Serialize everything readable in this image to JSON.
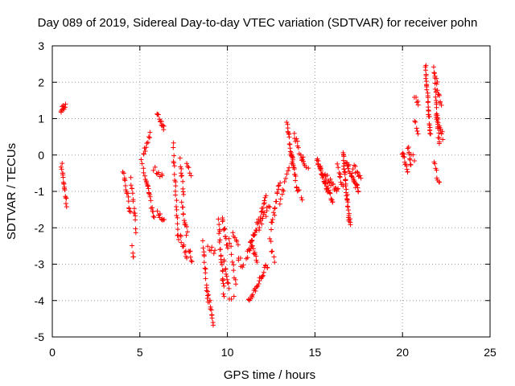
{
  "chart_data": {
    "type": "scatter",
    "title": "Day 089 of 2019, Sidereal Day-to-day VTEC variation (SDTVAR) for receiver pohn",
    "xlabel": "GPS time / hours",
    "ylabel": "SDTVAR / TECUs",
    "xlim": [
      0,
      25
    ],
    "ylim": [
      -5,
      3
    ],
    "xticks": [
      0,
      5,
      10,
      15,
      20,
      25
    ],
    "yticks": [
      -5,
      -4,
      -3,
      -2,
      -1,
      0,
      1,
      2,
      3
    ],
    "grid": true,
    "marker": "+",
    "marker_color": "#ff0000",
    "series": [
      {
        "name": "SDTVAR",
        "tracks": [
          {
            "x0": 0.5,
            "x1": 0.75,
            "y0": 1.2,
            "y1": 1.4,
            "n": 10
          },
          {
            "x0": 0.52,
            "x1": 0.82,
            "y0": -0.25,
            "y1": -1.35,
            "n": 18
          },
          {
            "x0": 4.05,
            "x1": 4.45,
            "y0": -0.45,
            "y1": -1.6,
            "n": 16
          },
          {
            "x0": 4.5,
            "x1": 4.8,
            "y0": -0.7,
            "y1": -2.05,
            "n": 14
          },
          {
            "x0": 4.55,
            "x1": 4.65,
            "y0": -2.55,
            "y1": -2.8,
            "n": 4
          },
          {
            "x0": 5.1,
            "x1": 5.5,
            "y0": -0.1,
            "y1": -1.0,
            "n": 10
          },
          {
            "x0": 5.2,
            "x1": 5.6,
            "y0": 0.0,
            "y1": 0.55,
            "n": 10
          },
          {
            "x0": 5.4,
            "x1": 5.8,
            "y0": -0.8,
            "y1": -1.75,
            "n": 14
          },
          {
            "x0": 5.8,
            "x1": 6.3,
            "y0": -0.4,
            "y1": -0.55,
            "n": 8
          },
          {
            "x0": 6.0,
            "x1": 6.4,
            "y0": 1.1,
            "y1": 0.75,
            "n": 12
          },
          {
            "x0": 6.0,
            "x1": 6.4,
            "y0": -1.55,
            "y1": -1.8,
            "n": 10
          },
          {
            "x0": 6.9,
            "x1": 7.2,
            "y0": 0.25,
            "y1": -2.4,
            "n": 22
          },
          {
            "x0": 7.3,
            "x1": 7.5,
            "y0": -0.15,
            "y1": -1.05,
            "n": 10
          },
          {
            "x0": 7.4,
            "x1": 7.7,
            "y0": -1.3,
            "y1": -2.2,
            "n": 12
          },
          {
            "x0": 7.3,
            "x1": 7.7,
            "y0": -2.25,
            "y1": -2.8,
            "n": 10
          },
          {
            "x0": 7.8,
            "x1": 8.0,
            "y0": -2.6,
            "y1": -2.9,
            "n": 6
          },
          {
            "x0": 7.7,
            "x1": 7.9,
            "y0": -0.2,
            "y1": -0.6,
            "n": 5
          },
          {
            "x0": 8.6,
            "x1": 8.9,
            "y0": -2.4,
            "y1": -4.05,
            "n": 16
          },
          {
            "x0": 8.9,
            "x1": 9.2,
            "y0": -3.8,
            "y1": -4.7,
            "n": 12
          },
          {
            "x0": 8.9,
            "x1": 9.3,
            "y0": -2.5,
            "y1": -2.7,
            "n": 6
          },
          {
            "x0": 9.5,
            "x1": 9.8,
            "y0": -1.8,
            "y1": -3.85,
            "n": 24
          },
          {
            "x0": 9.7,
            "x1": 10.0,
            "y0": -1.7,
            "y1": -2.6,
            "n": 12
          },
          {
            "x0": 9.8,
            "x1": 10.1,
            "y0": -2.9,
            "y1": -3.6,
            "n": 10
          },
          {
            "x0": 10.1,
            "x1": 10.4,
            "y0": -3.9,
            "y1": -3.9,
            "n": 3
          },
          {
            "x0": 10.1,
            "x1": 10.5,
            "y0": -2.3,
            "y1": -3.6,
            "n": 10
          },
          {
            "x0": 10.3,
            "x1": 10.6,
            "y0": -2.2,
            "y1": -2.5,
            "n": 6
          },
          {
            "x0": 10.6,
            "x1": 10.9,
            "y0": -2.8,
            "y1": -3.1,
            "n": 6
          },
          {
            "x0": 11.1,
            "x1": 12.2,
            "y0": -2.8,
            "y1": -1.2,
            "n": 34
          },
          {
            "x0": 11.2,
            "x1": 12.3,
            "y0": -4.05,
            "y1": -3.0,
            "n": 26
          },
          {
            "x0": 11.3,
            "x1": 11.7,
            "y0": -2.3,
            "y1": -2.9,
            "n": 12
          },
          {
            "x0": 11.8,
            "x1": 12.4,
            "y0": -2.0,
            "y1": -1.4,
            "n": 12
          },
          {
            "x0": 12.5,
            "x1": 13.0,
            "y0": -2.0,
            "y1": -0.7,
            "n": 16
          },
          {
            "x0": 12.4,
            "x1": 12.7,
            "y0": -2.3,
            "y1": -3.0,
            "n": 6
          },
          {
            "x0": 13.0,
            "x1": 13.5,
            "y0": -1.3,
            "y1": -0.4,
            "n": 10
          },
          {
            "x0": 13.4,
            "x1": 13.8,
            "y0": 0.9,
            "y1": -0.4,
            "n": 20
          },
          {
            "x0": 13.6,
            "x1": 14.0,
            "y0": 0.1,
            "y1": -1.0,
            "n": 14
          },
          {
            "x0": 13.8,
            "x1": 14.4,
            "y0": 0.6,
            "y1": -0.3,
            "n": 14
          },
          {
            "x0": 14.0,
            "x1": 14.3,
            "y0": -0.9,
            "y1": -1.3,
            "n": 4
          },
          {
            "x0": 14.3,
            "x1": 14.6,
            "y0": -0.1,
            "y1": -0.4,
            "n": 4
          },
          {
            "x0": 15.1,
            "x1": 16.0,
            "y0": -0.1,
            "y1": -1.3,
            "n": 34
          },
          {
            "x0": 15.3,
            "x1": 16.3,
            "y0": -0.4,
            "y1": -1.0,
            "n": 24
          },
          {
            "x0": 16.3,
            "x1": 16.6,
            "y0": -0.3,
            "y1": -0.9,
            "n": 10
          },
          {
            "x0": 16.6,
            "x1": 17.0,
            "y0": 0.05,
            "y1": -1.95,
            "n": 36
          },
          {
            "x0": 16.8,
            "x1": 17.5,
            "y0": -0.2,
            "y1": -1.0,
            "n": 26
          },
          {
            "x0": 17.2,
            "x1": 17.6,
            "y0": -0.3,
            "y1": -0.6,
            "n": 10
          },
          {
            "x0": 20.0,
            "x1": 20.3,
            "y0": 0.1,
            "y1": -0.45,
            "n": 12
          },
          {
            "x0": 20.3,
            "x1": 20.5,
            "y0": 0.2,
            "y1": -0.3,
            "n": 8
          },
          {
            "x0": 20.5,
            "x1": 20.7,
            "y0": 0.0,
            "y1": -0.1,
            "n": 3
          },
          {
            "x0": 20.7,
            "x1": 20.9,
            "y0": 1.6,
            "y1": 1.4,
            "n": 5
          },
          {
            "x0": 20.7,
            "x1": 20.9,
            "y0": 1.0,
            "y1": 0.6,
            "n": 5
          },
          {
            "x0": 21.3,
            "x1": 21.6,
            "y0": 2.45,
            "y1": 0.5,
            "n": 30
          },
          {
            "x0": 21.8,
            "x1": 22.1,
            "y0": 2.4,
            "y1": 0.3,
            "n": 26
          },
          {
            "x0": 21.9,
            "x1": 22.2,
            "y0": 2.1,
            "y1": 1.3,
            "n": 10
          },
          {
            "x0": 21.8,
            "x1": 22.1,
            "y0": -0.2,
            "y1": -0.8,
            "n": 8
          },
          {
            "x0": 21.9,
            "x1": 22.3,
            "y0": 1.1,
            "y1": 0.5,
            "n": 12
          }
        ]
      }
    ]
  }
}
